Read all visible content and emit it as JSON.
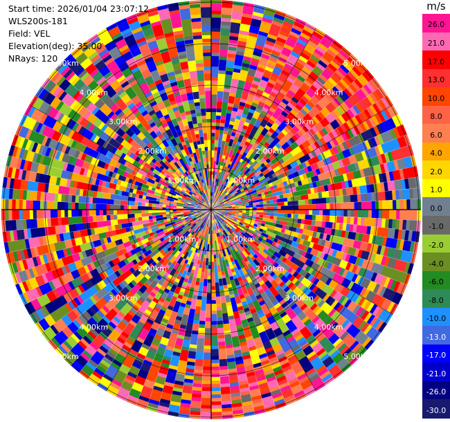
{
  "info": {
    "start_time": "Start time: 2026/01/04 23:07:12",
    "site": "WLS200s-181",
    "field": "Field: VEL",
    "elevation": "Elevation(deg): 35.00",
    "nrays": "NRays: 120"
  },
  "colorbar": {
    "unit": "m/s",
    "ticks": [
      "26.0",
      "21.0",
      "17.0",
      "13.0",
      "10.0",
      "8.0",
      "6.0",
      "4.0",
      "2.0",
      "1.0",
      "0.0",
      "-1.0",
      "-2.0",
      "-4.0",
      "-6.0",
      "-8.0",
      "-10.0",
      "-13.0",
      "-17.0",
      "-21.0",
      "-26.0",
      "-30.0"
    ],
    "colors": [
      "#ff1493",
      "#ff69b4",
      "#ff0000",
      "#ff3030",
      "#ff4500",
      "#ff6347",
      "#ff7f50",
      "#ffa500",
      "#ffd700",
      "#ffff00",
      "#708090",
      "#696969",
      "#9acd32",
      "#6b8e23",
      "#228b22",
      "#2e8b57",
      "#1e90ff",
      "#4169e1",
      "#0000ff",
      "#0000cd",
      "#000080",
      "#191970"
    ]
  },
  "chart_data": {
    "type": "ppi",
    "field": "VEL",
    "units": "m/s",
    "elevation_deg": 35.0,
    "n_rays": 120,
    "range_rings_km": [
      "1.00km",
      "2.00km",
      "3.00km",
      "4.00km",
      "5.00km"
    ],
    "color_levels": [
      -30,
      -26,
      -21,
      -17,
      -13,
      -10,
      -8,
      -6,
      -4,
      -2,
      -1,
      0,
      1,
      2,
      4,
      6,
      8,
      10,
      13,
      17,
      21,
      26
    ],
    "colorbar": "right",
    "grid": true
  }
}
